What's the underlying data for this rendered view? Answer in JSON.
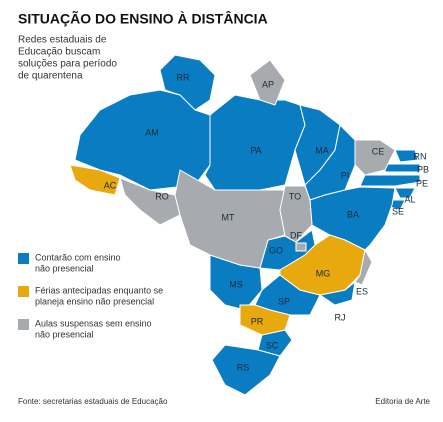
{
  "header": {
    "title": "SITUAÇÃO DO ENSINO À DISTÂNCIA",
    "subtitle": [
      "Redes estaduais de",
      "Educação buscam",
      "soluções para período",
      "de quarentena"
    ]
  },
  "legend": {
    "items": [
      {
        "label": [
          "Contarão com ensino",
          "não presencial"
        ],
        "color": "#0a7cc2",
        "states": [
          "RR",
          "AM",
          "PA",
          "MA",
          "PI",
          "RN",
          "PB",
          "PE",
          "AL",
          "SE",
          "BA",
          "GO",
          "MS",
          "SP",
          "RJ",
          "SC",
          "RS"
        ]
      },
      {
        "label": [
          "Férias antecipadas enquanto se",
          "planeja ensino não presencial"
        ],
        "color": "#e8a90e",
        "states": [
          "AC",
          "MG",
          "PR"
        ]
      },
      {
        "label": [
          "Aulas suspensas sem ensino",
          "não presencial"
        ],
        "color": "#a7abb0",
        "states": [
          "AP",
          "RO",
          "MT",
          "TO",
          "CE",
          "DF",
          "ES"
        ]
      }
    ]
  },
  "footer": {
    "source": "Fonte: secretarias estaduais de Educação",
    "credit": "Editoria de Arte"
  }
}
